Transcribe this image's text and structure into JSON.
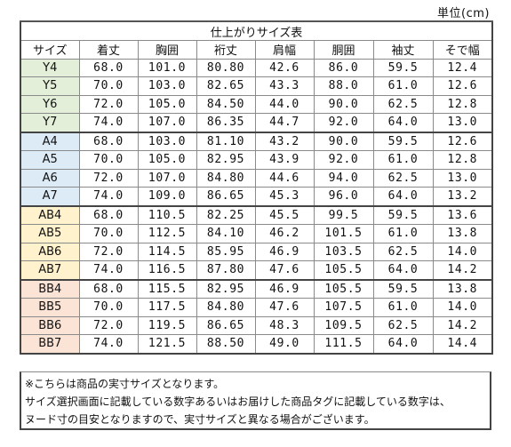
{
  "unit_label": "単位(cm)",
  "table": {
    "title": "仕上がりサイズ表",
    "columns": [
      "サイズ",
      "着丈",
      "胸囲",
      "裄丈",
      "肩幅",
      "胴囲",
      "袖丈",
      "そで幅"
    ],
    "groups": [
      {
        "name": "Y",
        "rows": [
          [
            "Y4",
            "68.0",
            "101.0",
            "80.80",
            "42.6",
            "86.0",
            "59.5",
            "12.4"
          ],
          [
            "Y5",
            "70.0",
            "103.0",
            "82.65",
            "43.3",
            "88.0",
            "61.0",
            "12.6"
          ],
          [
            "Y6",
            "72.0",
            "105.0",
            "84.50",
            "44.0",
            "90.0",
            "62.5",
            "12.8"
          ],
          [
            "Y7",
            "74.0",
            "107.0",
            "86.35",
            "44.7",
            "92.0",
            "64.0",
            "13.0"
          ]
        ]
      },
      {
        "name": "A",
        "rows": [
          [
            "A4",
            "68.0",
            "103.0",
            "81.10",
            "43.2",
            "90.0",
            "59.5",
            "12.6"
          ],
          [
            "A5",
            "70.0",
            "105.0",
            "82.95",
            "43.9",
            "92.0",
            "61.0",
            "12.8"
          ],
          [
            "A6",
            "72.0",
            "107.0",
            "84.80",
            "44.6",
            "94.0",
            "62.5",
            "13.0"
          ],
          [
            "A7",
            "74.0",
            "109.0",
            "86.65",
            "45.3",
            "96.0",
            "64.0",
            "13.2"
          ]
        ]
      },
      {
        "name": "AB",
        "rows": [
          [
            "AB4",
            "68.0",
            "110.5",
            "82.25",
            "45.5",
            "99.5",
            "59.5",
            "13.6"
          ],
          [
            "AB5",
            "70.0",
            "112.5",
            "84.10",
            "46.2",
            "101.5",
            "61.0",
            "13.8"
          ],
          [
            "AB6",
            "72.0",
            "114.5",
            "85.95",
            "46.9",
            "103.5",
            "62.5",
            "14.0"
          ],
          [
            "AB7",
            "74.0",
            "116.5",
            "87.80",
            "47.6",
            "105.5",
            "64.0",
            "14.2"
          ]
        ]
      },
      {
        "name": "BB",
        "rows": [
          [
            "BB4",
            "68.0",
            "115.5",
            "82.95",
            "46.9",
            "105.5",
            "59.5",
            "13.8"
          ],
          [
            "BB5",
            "70.0",
            "117.5",
            "84.80",
            "47.6",
            "107.5",
            "61.0",
            "14.0"
          ],
          [
            "BB6",
            "72.0",
            "119.5",
            "86.65",
            "48.3",
            "109.5",
            "62.5",
            "14.2"
          ],
          [
            "BB7",
            "74.0",
            "121.5",
            "88.50",
            "49.0",
            "111.5",
            "64.0",
            "14.4"
          ]
        ]
      }
    ]
  },
  "notes": [
    "※こちらは商品の実寸サイズとなります。",
    "サイズ選択画面に記載している数字あるいはお届けした商品タグに記載している数字は、",
    "ヌード寸の目安となりますので、実寸サイズと異なる場合がございます。"
  ]
}
